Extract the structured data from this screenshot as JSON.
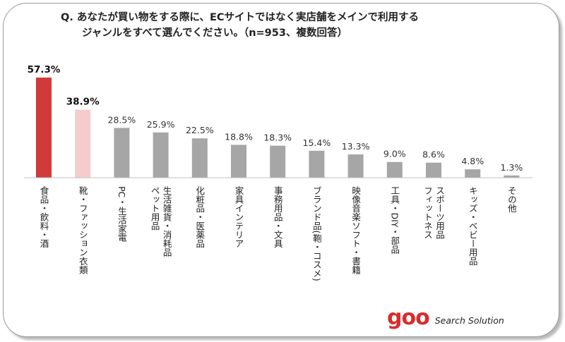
{
  "chart_data": {
    "type": "bar",
    "title_line1": "Q. あなたが買い物をする際に、ECサイトではなく実店舗をメインで利用する",
    "title_line2": "ジャンルをすべて選んでください。（n=953、複数回答）",
    "categories": [
      "食品・飲料・酒",
      "靴・ファッション衣類",
      "PC・生活家電",
      "ペット用品・生活雑貨・消耗品",
      "化粧品・医薬品",
      "家具インテリア",
      "事務用品・文具",
      "ブランド品(鞄・コスメ)",
      "映像音楽ソフト・書籍",
      "工具・DIY・部品",
      "スポーツ用品・フィットネス",
      "キッズ・ベビー用品",
      "その他"
    ],
    "category_lines": [
      [
        "食品・飲料・酒"
      ],
      [
        "靴・ファッション衣類"
      ],
      [
        "PC・生活家電"
      ],
      [
        "ペット用品",
        "生活雑貨・消耗品"
      ],
      [
        "化粧品・医薬品"
      ],
      [
        "家具インテリア"
      ],
      [
        "事務用品・文具"
      ],
      [
        "ブランド品(鞄・コスメ)"
      ],
      [
        "映像音楽ソフト・書籍"
      ],
      [
        "工具・DIY・部品"
      ],
      [
        "フィットネス",
        "スポーツ用品"
      ],
      [
        "キッズ・ベビー用品"
      ],
      [
        "その他"
      ]
    ],
    "values": [
      57.3,
      38.9,
      28.5,
      25.9,
      22.5,
      18.8,
      18.3,
      15.4,
      13.3,
      9.0,
      8.6,
      4.8,
      1.3
    ],
    "value_labels": [
      "57.3%",
      "38.9%",
      "28.5%",
      "25.9%",
      "22.5%",
      "18.8%",
      "18.3%",
      "15.4%",
      "13.3%",
      "9.0%",
      "8.6%",
      "4.8%",
      "1.3%"
    ],
    "bar_colors": [
      "#d03a3a",
      "#f4cccc",
      "#a6a6a6",
      "#a6a6a6",
      "#a6a6a6",
      "#a6a6a6",
      "#a6a6a6",
      "#a6a6a6",
      "#a6a6a6",
      "#a6a6a6",
      "#a6a6a6",
      "#a6a6a6",
      "#a6a6a6"
    ],
    "bold_labels": [
      true,
      true,
      false,
      false,
      false,
      false,
      false,
      false,
      false,
      false,
      false,
      false,
      false
    ],
    "ylim": [
      0,
      57.3
    ],
    "xlabel": "",
    "ylabel": ""
  },
  "logo": {
    "brand": "goo",
    "tagline": "Search Solution"
  },
  "colors": {
    "accent": "#d92b2b",
    "axis": "#bfbfbf"
  }
}
